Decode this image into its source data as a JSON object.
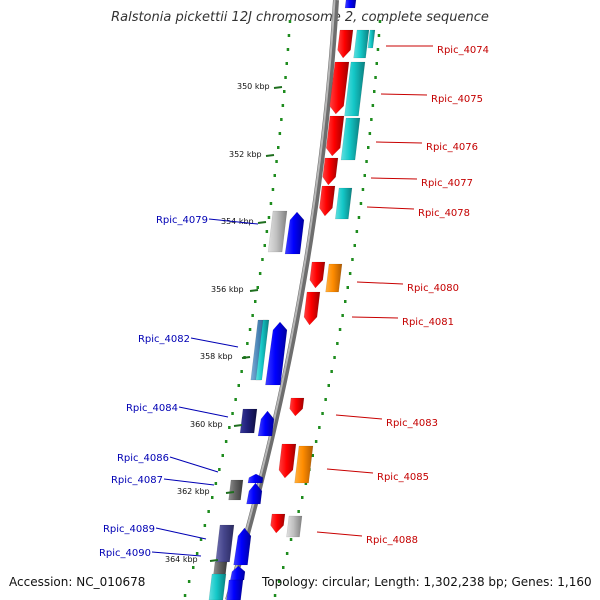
{
  "title": "Ralstonia pickettii 12J chromosome 2, complete sequence",
  "footer": {
    "accession_label": "Accession: NC_010678",
    "summary": "Topology: circular; Length: 1,302,238 bp; Genes: 1,160"
  },
  "colors": {
    "forward_gene": "#ff0000",
    "reverse_gene": "#0000ff",
    "cyan_gene": "#14c8c8",
    "orange_gene": "#ff8c00",
    "gray_gene": "#b4b4b4",
    "navy_gene": "#1e1e78",
    "dark_gray_gene": "#646464",
    "slate_gene": "#46468c",
    "steel_gene": "#4682b4",
    "backbone": "#8c8c8c",
    "gc_dots": "#1e8c1e",
    "forward_label": "#c80000",
    "reverse_label": "#0000b4"
  },
  "kbp_ticks": [
    "350 kbp",
    "352 kbp",
    "354 kbp",
    "356 kbp",
    "358 kbp",
    "360 kbp",
    "362 kbp",
    "364 kbp"
  ],
  "forward_labels": [
    "Rpic_4074",
    "Rpic_4075",
    "Rpic_4076",
    "Rpic_4077",
    "Rpic_4078",
    "Rpic_4080",
    "Rpic_4081",
    "Rpic_4083",
    "Rpic_4085",
    "Rpic_4088"
  ],
  "reverse_labels": [
    "Rpic_4079",
    "Rpic_4082",
    "Rpic_4084",
    "Rpic_4086",
    "Rpic_4087",
    "Rpic_4089",
    "Rpic_4090"
  ]
}
